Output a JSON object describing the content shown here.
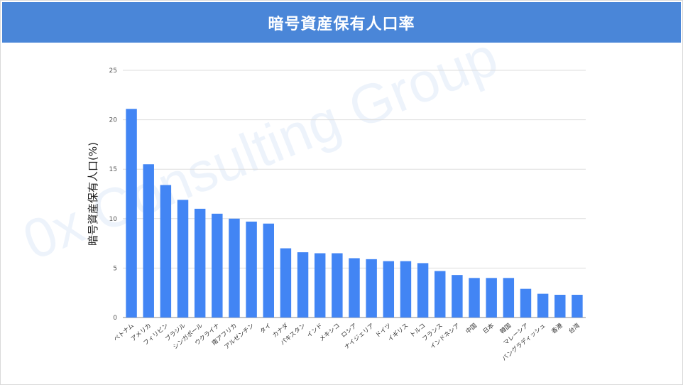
{
  "title": "暗号資産保有人口率",
  "watermark": "0x Consulting Group",
  "colors": {
    "title_bg": "#4a86d8",
    "bar": "#4285f4",
    "grid": "#dddddd"
  },
  "chart_data": {
    "type": "bar",
    "ylabel": "暗号資産保有人口(%)",
    "ylim": [
      0,
      25
    ],
    "yticks": [
      0,
      5,
      10,
      15,
      20,
      25
    ],
    "grid": true,
    "categories": [
      "ベトナム",
      "アメリカ",
      "フィリピン",
      "ブラジル",
      "シンガポール",
      "ウクライナ",
      "南アフリカ",
      "アルゼンチン",
      "タイ",
      "カナダ",
      "パキスタン",
      "インド",
      "メキシコ",
      "ロシア",
      "ナイジェリア",
      "ドイツ",
      "イギリス",
      "トルコ",
      "フランス",
      "インドネシア",
      "中国",
      "日本",
      "韓国",
      "マレーシア",
      "バングラディッシュ",
      "香港",
      "台湾"
    ],
    "values": [
      21.1,
      15.5,
      13.4,
      11.9,
      11.0,
      10.5,
      10.0,
      9.7,
      9.5,
      7.0,
      6.6,
      6.5,
      6.5,
      6.0,
      5.9,
      5.7,
      5.7,
      5.5,
      4.7,
      4.3,
      4.0,
      4.0,
      4.0,
      2.9,
      2.4,
      2.3,
      2.3
    ]
  }
}
